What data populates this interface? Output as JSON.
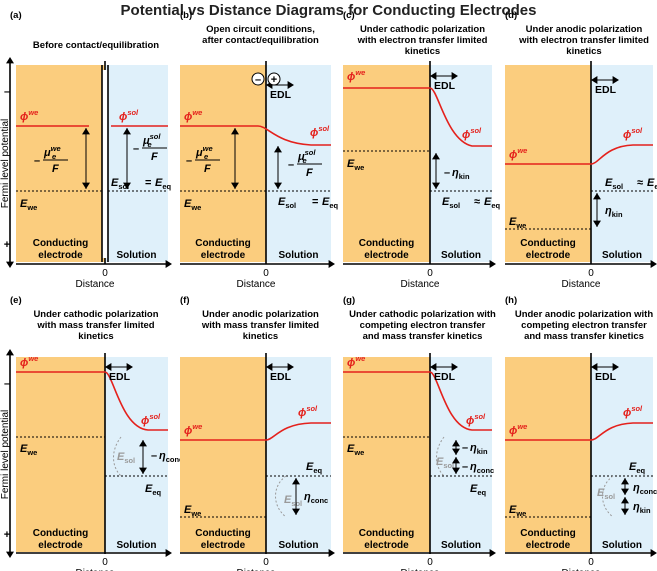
{
  "title": "Potential vs Distance Diagrams for Conducting Electrodes",
  "y_axis_label": "Fermi level potential",
  "x_axis_label": "Distance",
  "origin_label": "0",
  "axis_signs": {
    "top": "–",
    "bottom": "+"
  },
  "region_labels": {
    "electrode_line1": "Conducting",
    "electrode_line2": "electrode",
    "solution": "Solution"
  },
  "colors": {
    "electrode_fill": "#FBCD7E",
    "solution_fill": "#DFF0FA",
    "potential_line": "#E4211C",
    "text": "#000000",
    "grey_symbol": "#9A9A9A"
  },
  "symbols": {
    "phi_we": "ϕwe",
    "phi_sol": "ϕsol",
    "e_we": "Ewe",
    "e_sol": "Esol",
    "e_eq": "Eeq",
    "edl": "EDL",
    "neg_mu_we": "– μewe / F",
    "neg_mu_sol": "– μesol / F",
    "eta_kin": "ηkin",
    "neg_eta_kin": "–ηkin",
    "eta_conc": "ηconc",
    "neg_eta_conc": "–ηconc",
    "minus_sign": "–",
    "plus_sign": "+"
  },
  "panels": [
    {
      "id": "a",
      "tag": "(a)",
      "caption": [
        "Before contact/equilibration"
      ]
    },
    {
      "id": "b",
      "tag": "(b)",
      "caption": [
        "Open circuit conditions,",
        "after contact/equilibration"
      ]
    },
    {
      "id": "c",
      "tag": "(c)",
      "caption": [
        "Under cathodic polarization",
        "with electron transfer limited",
        "kinetics"
      ]
    },
    {
      "id": "d",
      "tag": "(d)",
      "caption": [
        "Under anodic polarization",
        "with electron transfer limited",
        "kinetics"
      ]
    },
    {
      "id": "e",
      "tag": "(e)",
      "caption": [
        "Under cathodic polarization",
        "with mass transfer limited",
        "kinetics"
      ]
    },
    {
      "id": "f",
      "tag": "(f)",
      "caption": [
        "Under anodic polarization",
        "with mass transfer limited",
        "kinetics"
      ]
    },
    {
      "id": "g",
      "tag": "(g)",
      "caption": [
        "Under cathodic polarization with",
        "competing electron transfer",
        "and mass transfer kinetics"
      ]
    },
    {
      "id": "h",
      "tag": "(h)",
      "caption": [
        "Under anodic polarization with",
        "competing electron transfer",
        "and mass transfer kinetics"
      ]
    }
  ]
}
